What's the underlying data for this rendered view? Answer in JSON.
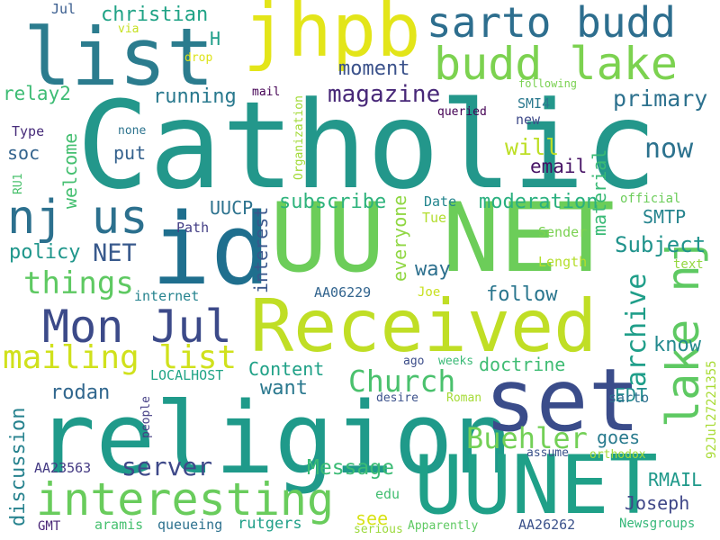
{
  "words": [
    {
      "text": "Catholic",
      "color": "#23978b"
    },
    {
      "text": "UU NET",
      "color": "#6ccd59"
    },
    {
      "text": "religion",
      "color": "#1f9a8a"
    },
    {
      "text": "Received",
      "color": "#c0de25"
    },
    {
      "text": "set",
      "color": "#3a4c8a"
    },
    {
      "text": "UUNET",
      "color": "#1fa088"
    },
    {
      "text": "id",
      "color": "#1f6f8e"
    },
    {
      "text": "list",
      "color": "#2b7c8e"
    },
    {
      "text": "jhpb",
      "color": "#e3e519"
    },
    {
      "text": "nj us",
      "color": "#2c708e"
    },
    {
      "text": "interesting",
      "color": "#69cc5c"
    },
    {
      "text": "Mon Jul",
      "color": "#3c4a89"
    },
    {
      "text": "sarto budd",
      "color": "#2d6e8e"
    },
    {
      "text": "budd lake",
      "color": "#7cd250"
    },
    {
      "text": "lake nj",
      "color": "#5ec962"
    },
    {
      "text": "mailing list",
      "color": "#d0e11c"
    },
    {
      "text": "magazine",
      "color": "#482878"
    },
    {
      "text": "things",
      "color": "#5ec962"
    },
    {
      "text": "Church",
      "color": "#4ac16d"
    },
    {
      "text": "Buehler",
      "color": "#73d056"
    },
    {
      "text": "archive",
      "color": "#1f9e89"
    },
    {
      "text": "server",
      "color": "#3e4989"
    },
    {
      "text": "christian",
      "color": "#20a386"
    },
    {
      "text": "now",
      "color": "#2c728e"
    },
    {
      "text": "moment",
      "color": "#3b528b"
    },
    {
      "text": "primary",
      "color": "#2c718e"
    },
    {
      "text": "Message",
      "color": "#3bbb75"
    },
    {
      "text": "discussion",
      "color": "#26828e"
    },
    {
      "text": "email",
      "color": "#471365"
    },
    {
      "text": "will",
      "color": "#bddf26"
    },
    {
      "text": "material",
      "color": "#3aba76"
    },
    {
      "text": "moderation",
      "color": "#2ab07f"
    },
    {
      "text": "subscribe",
      "color": "#2eb37c"
    },
    {
      "text": "Subject",
      "color": "#20938c"
    },
    {
      "text": "running",
      "color": "#29798e"
    },
    {
      "text": "relay2",
      "color": "#3dbc74"
    },
    {
      "text": "soc",
      "color": "#33638d"
    },
    {
      "text": "welcome",
      "color": "#44bf70"
    },
    {
      "text": "put",
      "color": "#34618d"
    },
    {
      "text": "UUCP",
      "color": "#2c728e"
    },
    {
      "text": "NET",
      "color": "#38598c"
    },
    {
      "text": "policy",
      "color": "#1f968b"
    },
    {
      "text": "SMTP",
      "color": "#25848e"
    },
    {
      "text": "follow",
      "color": "#2a768e"
    },
    {
      "text": "way",
      "color": "#2d708e"
    },
    {
      "text": "everyone",
      "color": "#90d743"
    },
    {
      "text": "interest",
      "color": "#39568c"
    },
    {
      "text": "know",
      "color": "#23898e"
    },
    {
      "text": "Content",
      "color": "#1fa187"
    },
    {
      "text": "want",
      "color": "#2a788e"
    },
    {
      "text": "doctrine",
      "color": "#3fbc73"
    },
    {
      "text": "rodan",
      "color": "#31678e"
    },
    {
      "text": "EDT",
      "color": "#228c8d"
    },
    {
      "text": "goes",
      "color": "#297b8e"
    },
    {
      "text": "RMAIL",
      "color": "#1f998a"
    },
    {
      "text": "Joseph",
      "color": "#3f4788"
    },
    {
      "text": "see",
      "color": "#d8e219"
    },
    {
      "text": "rutgers",
      "color": "#1f9f88"
    },
    {
      "text": "aramis",
      "color": "#46c06f"
    },
    {
      "text": "queueing",
      "color": "#2d718e"
    },
    {
      "text": "Newsgroups",
      "color": "#35b779"
    },
    {
      "text": "AA26262",
      "color": "#3b528b"
    },
    {
      "text": "AA23563",
      "color": "#443a83"
    },
    {
      "text": "GMT",
      "color": "#482576"
    },
    {
      "text": "edu",
      "color": "#42be71"
    },
    {
      "text": "92Jul27221355",
      "color": "#a8db34"
    },
    {
      "text": "sarto",
      "color": "#2e6f8e"
    },
    {
      "text": "Date",
      "color": "#24868e"
    },
    {
      "text": "Tue",
      "color": "#b2dd2d"
    },
    {
      "text": "Sender",
      "color": "#7ad151"
    },
    {
      "text": "Length",
      "color": "#b5de2b"
    },
    {
      "text": "text",
      "color": "#95d840"
    },
    {
      "text": "official",
      "color": "#6ccd5a"
    },
    {
      "text": "AA06229",
      "color": "#32648e"
    },
    {
      "text": "Joe",
      "color": "#c8e020"
    },
    {
      "text": "internet",
      "color": "#25838e"
    },
    {
      "text": "Path",
      "color": "#433e85"
    },
    {
      "text": "LOCALHOST",
      "color": "#20a486"
    },
    {
      "text": "ago",
      "color": "#3d4e8a"
    },
    {
      "text": "weeks",
      "color": "#3aba76"
    },
    {
      "text": "desire",
      "color": "#3b518b"
    },
    {
      "text": "Roman",
      "color": "#a5db36"
    },
    {
      "text": "assume",
      "color": "#3b528b"
    },
    {
      "text": "orthodox",
      "color": "#a0da39"
    },
    {
      "text": "people",
      "color": "#433d84"
    },
    {
      "text": "serious",
      "color": "#9bd93c"
    },
    {
      "text": "Apparently",
      "color": "#5ec962"
    },
    {
      "text": "Organization",
      "color": "#a2da37"
    },
    {
      "text": "H",
      "color": "#1f9e89"
    },
    {
      "text": "via",
      "color": "#c5e021"
    },
    {
      "text": "drop",
      "color": "#dde318"
    },
    {
      "text": "Jul",
      "color": "#375b8d"
    },
    {
      "text": "mail",
      "color": "#440154"
    },
    {
      "text": "Type",
      "color": "#472c7a"
    },
    {
      "text": "none",
      "color": "#2c738e"
    },
    {
      "text": "RU1",
      "color": "#4ac16d"
    },
    {
      "text": "SMI4",
      "color": "#2a788e"
    },
    {
      "text": "new",
      "color": "#3e4a89"
    },
    {
      "text": "queried",
      "color": "#440154"
    },
    {
      "text": "following",
      "color": "#7ad151"
    }
  ]
}
